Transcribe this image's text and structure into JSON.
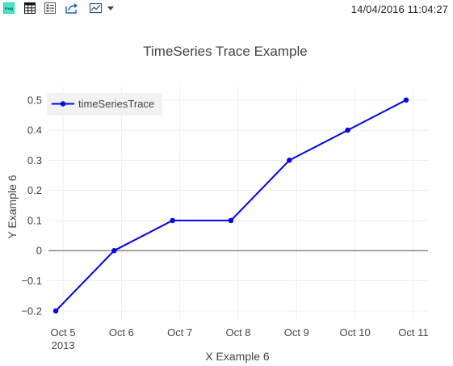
{
  "toolbar": {
    "buttons": [
      {
        "id": "export",
        "icon": "export-image-icon"
      },
      {
        "id": "table",
        "icon": "table-grid-icon"
      },
      {
        "id": "legend",
        "icon": "list-legend-icon"
      },
      {
        "id": "share",
        "icon": "share-arrow-icon"
      },
      {
        "id": "chart-type",
        "icon": "chart-picture-icon"
      },
      {
        "id": "menu",
        "icon": "caret-down-icon"
      }
    ],
    "export_label": "Imag",
    "timestamp": "14/04/2016 11:04:27"
  },
  "colors": {
    "series": "#0000ff",
    "zeroline": "#888888",
    "grid": "#eeeeee",
    "legend_bg": "#f2f2f2",
    "text": "#444444"
  },
  "chart_data": {
    "type": "line",
    "title": "TimeSeries Trace Example",
    "xlabel": "X Example 6",
    "ylabel": "Y Example 6",
    "x_ticks": [
      "Oct 5",
      "Oct 6",
      "Oct 7",
      "Oct 8",
      "Oct 9",
      "Oct 10",
      "Oct 11"
    ],
    "x_tick_sublabel": "2013",
    "x_range": [
      "2013-10-04T18:00",
      "2013-10-11T06:00"
    ],
    "y_range": [
      -0.23,
      0.545
    ],
    "y_ticks": [
      {
        "value": 0.5,
        "label": "0.5"
      },
      {
        "value": 0.4,
        "label": "0.4"
      },
      {
        "value": 0.3,
        "label": "0.3"
      },
      {
        "value": 0.2,
        "label": "0.2"
      },
      {
        "value": 0.1,
        "label": "0.1"
      },
      {
        "value": 0,
        "label": "0"
      },
      {
        "value": -0.1,
        "label": "−0.1"
      },
      {
        "value": -0.2,
        "label": "−0.2"
      }
    ],
    "grid": true,
    "legend_position": "top-left",
    "series": [
      {
        "name": "timeSeriesTrace",
        "mode": "lines+markers",
        "x": [
          "2013-10-04T21:00",
          "2013-10-05T21:00",
          "2013-10-06T21:00",
          "2013-10-07T21:00",
          "2013-10-08T21:00",
          "2013-10-09T21:00",
          "2013-10-10T21:00"
        ],
        "values": [
          -0.2,
          0,
          0.1,
          0.1,
          0.3,
          0.4,
          0.5
        ]
      }
    ]
  }
}
